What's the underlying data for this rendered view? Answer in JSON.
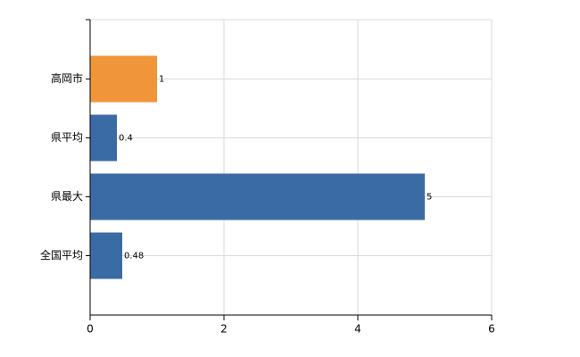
{
  "chart_data": {
    "type": "bar",
    "orientation": "horizontal",
    "categories": [
      "高岡市",
      "県平均",
      "県最大",
      "全国平均"
    ],
    "values": [
      1,
      0.4,
      5,
      0.48
    ],
    "colors": [
      "#f0953a",
      "#3b6ba5",
      "#3b6ba5",
      "#3b6ba5"
    ],
    "xlim": [
      0,
      6
    ],
    "xticks": [
      0,
      2,
      4,
      6
    ],
    "grid": true
  }
}
